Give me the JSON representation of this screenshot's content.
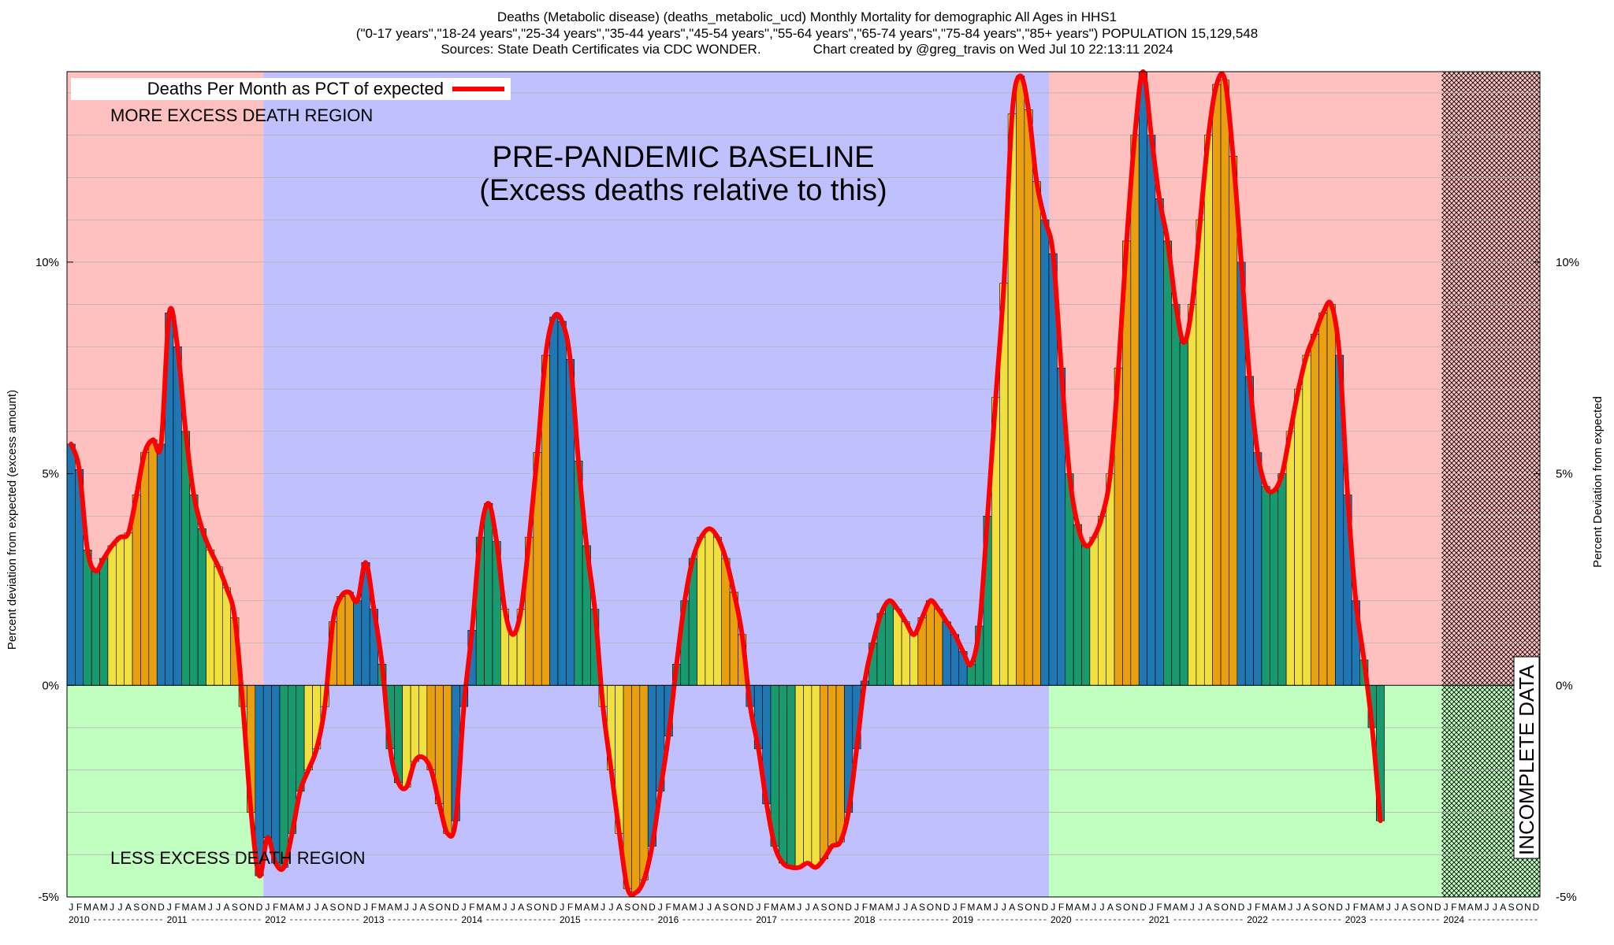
{
  "chart_data": {
    "type": "bar",
    "title_lines": [
      "Deaths (Metabolic disease) (deaths_metabolic_ucd) Monthly Mortality for demographic All Ages in HHS1",
      "(\"0-17 years\",\"18-24 years\",\"25-34 years\",\"35-44 years\",\"45-54 years\",\"55-64 years\",\"65-74 years\",\"75-84 years\",\"85+ years\") POPULATION 15,129,548",
      "Sources: State Death Certificates via CDC WONDER.              Chart created by @greg_travis on Wed Jul 10 22:13:11 2024"
    ],
    "ylabel_left": "Percent deviation from expected (excess amount)",
    "ylabel_right": "Percent Deviation from expected",
    "ylim": [
      -5,
      14.5
    ],
    "yticks": [
      {
        "value": -5,
        "label": "-5%"
      },
      {
        "value": 0,
        "label": "0%"
      },
      {
        "value": 5,
        "label": "5%"
      },
      {
        "value": 10,
        "label": "10%"
      }
    ],
    "legend": {
      "label": "Deaths Per Month as PCT of expected",
      "color": "#ff0000",
      "position": "top-left"
    },
    "annotations": {
      "baseline_title": "PRE-PANDEMIC BASELINE",
      "baseline_subtitle": "(Excess deaths relative to this)",
      "more_excess": "MORE EXCESS DEATH REGION",
      "less_excess": "LESS EXCESS DEATH REGION",
      "incomplete": "INCOMPLETE DATA"
    },
    "month_letters": [
      "J",
      "F",
      "M",
      "A",
      "M",
      "J",
      "J",
      "A",
      "S",
      "O",
      "N",
      "D"
    ],
    "years": [
      "2010",
      "2011",
      "2012",
      "2013",
      "2014",
      "2015",
      "2016",
      "2017",
      "2018",
      "2019",
      "2020",
      "2021",
      "2022",
      "2023",
      "2024"
    ],
    "start": "2010-01",
    "baseline_period": {
      "start_index": 24,
      "end_index": 119
    },
    "incomplete_start_index": 168,
    "season_colors": {
      "winter": "#1f77b4",
      "spring": "#189a6e",
      "summer": "#f0e040",
      "fall": "#e8a010"
    },
    "values": [
      5.7,
      5.1,
      3.2,
      2.7,
      3.0,
      3.3,
      3.5,
      3.6,
      4.5,
      5.5,
      5.8,
      5.7,
      8.8,
      8.0,
      6.0,
      4.5,
      3.7,
      3.2,
      2.8,
      2.3,
      1.6,
      -0.5,
      -3.0,
      -4.5,
      -3.6,
      -4.2,
      -4.3,
      -3.5,
      -2.5,
      -2.0,
      -1.5,
      -0.5,
      1.5,
      2.1,
      2.2,
      2.0,
      2.9,
      1.8,
      0.5,
      -1.5,
      -2.3,
      -2.4,
      -1.8,
      -1.7,
      -2.0,
      -2.8,
      -3.5,
      -3.2,
      -0.5,
      1.3,
      3.5,
      4.3,
      3.4,
      1.8,
      1.2,
      1.8,
      3.5,
      5.5,
      7.8,
      8.7,
      8.6,
      7.7,
      5.3,
      3.3,
      1.8,
      -0.5,
      -2.0,
      -3.5,
      -4.8,
      -4.9,
      -4.6,
      -3.8,
      -2.5,
      -1.2,
      0.5,
      2.0,
      3.0,
      3.5,
      3.7,
      3.5,
      3.0,
      2.2,
      1.2,
      -0.5,
      -1.5,
      -2.8,
      -3.8,
      -4.2,
      -4.3,
      -4.3,
      -4.2,
      -4.3,
      -4.1,
      -3.8,
      -3.7,
      -3.0,
      -1.5,
      0.1,
      1.0,
      1.7,
      2.0,
      1.8,
      1.5,
      1.2,
      1.6,
      2.0,
      1.8,
      1.5,
      1.2,
      0.8,
      0.5,
      1.4,
      4.0,
      6.8,
      9.5,
      13.5,
      14.4,
      13.6,
      11.9,
      11.0,
      10.2,
      7.5,
      5.0,
      3.8,
      3.3,
      3.5,
      4.0,
      5.0,
      7.5,
      10.5,
      13.0,
      14.5,
      13.0,
      11.5,
      10.5,
      9.0,
      8.1,
      9.0,
      11.0,
      13.0,
      14.2,
      14.3,
      12.5,
      10.0,
      7.3,
      5.5,
      4.7,
      4.6,
      5.0,
      6.0,
      7.0,
      7.8,
      8.3,
      8.8,
      9.0,
      7.8,
      4.5,
      2.0,
      0.6,
      -1.0,
      -3.2
    ]
  }
}
